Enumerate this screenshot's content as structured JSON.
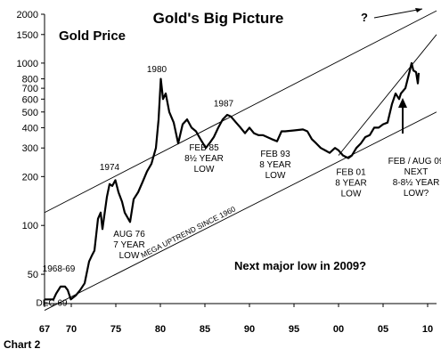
{
  "chart_data": {
    "type": "line",
    "title": "Gold's Big Picture",
    "ylabel": "Gold Price",
    "caption": "Chart 2",
    "question_mark": "?",
    "callout": "Next major low in 2009?",
    "trend_label": "MEGA UPTREND SINCE 1960",
    "y_scale": "log",
    "ylim": [
      33,
      2000
    ],
    "xlim": [
      1967,
      2011
    ],
    "y_ticks": [
      50,
      100,
      200,
      300,
      400,
      500,
      600,
      700,
      800,
      1000,
      1500,
      2000
    ],
    "y_tick_labels": [
      "50",
      "100",
      "200",
      "300",
      "400",
      "500",
      "600",
      "700",
      "800",
      "1000",
      "1500",
      "2000"
    ],
    "x_ticks": [
      1967,
      1970,
      1975,
      1980,
      1985,
      1990,
      1995,
      2000,
      2005,
      2010
    ],
    "x_tick_labels": [
      "67",
      "70",
      "75",
      "80",
      "85",
      "90",
      "95",
      "00",
      "05",
      "10"
    ],
    "grid": false,
    "series": [
      {
        "x": [
          1967.0,
          1968.0,
          1968.3,
          1968.8,
          1969.3,
          1969.6,
          1969.95,
          1970.5,
          1971.0,
          1971.5,
          1972.0,
          1972.3,
          1972.6,
          1973.0,
          1973.3,
          1973.5,
          1973.8,
          1974.0,
          1974.3,
          1974.6,
          1974.95,
          1975.3,
          1975.7,
          1976.0,
          1976.6,
          1977.0,
          1977.5,
          1978.0,
          1978.5,
          1979.0,
          1979.5,
          1979.8,
          1980.05,
          1980.3,
          1980.6,
          1981.0,
          1981.5,
          1982.0,
          1982.5,
          1983.0,
          1983.5,
          1984.0,
          1984.5,
          1985.1,
          1985.5,
          1986.0,
          1986.5,
          1987.0,
          1987.5,
          1987.9,
          1988.5,
          1989.0,
          1989.5,
          1990.0,
          1990.5,
          1991.0,
          1991.5,
          1992.0,
          1992.5,
          1993.1,
          1993.6,
          1994.0,
          1995.0,
          1996.0,
          1996.5,
          1997.0,
          1997.5,
          1998.0,
          1998.5,
          1999.0,
          1999.6,
          2000.0,
          2000.5,
          2001.1,
          2001.5,
          2002.0,
          2002.5,
          2003.0,
          2003.5,
          2004.0,
          2004.5,
          2005.0,
          2005.5,
          2006.0,
          2006.4,
          2006.8,
          2007.0,
          2007.5,
          2008.0,
          2008.2,
          2008.4,
          2008.7,
          2008.9,
          2009.0
        ],
        "values": [
          35,
          35,
          38,
          42,
          42,
          40,
          35,
          37,
          40,
          44,
          60,
          65,
          70,
          110,
          120,
          95,
          125,
          150,
          180,
          175,
          190,
          160,
          140,
          120,
          105,
          145,
          160,
          185,
          215,
          240,
          300,
          450,
          800,
          600,
          650,
          500,
          430,
          320,
          420,
          450,
          400,
          380,
          340,
          300,
          320,
          350,
          400,
          450,
          480,
          470,
          430,
          400,
          370,
          400,
          370,
          360,
          360,
          350,
          340,
          330,
          380,
          380,
          385,
          390,
          380,
          340,
          320,
          300,
          290,
          280,
          300,
          290,
          270,
          260,
          270,
          300,
          320,
          350,
          360,
          400,
          400,
          420,
          430,
          560,
          650,
          600,
          650,
          700,
          900,
          1000,
          900,
          880,
          750,
          870
        ]
      }
    ],
    "trendlines": [
      {
        "name": "upper",
        "x": [
          1967,
          2011
        ],
        "y": [
          120,
          2100
        ]
      },
      {
        "name": "lower",
        "x": [
          1967,
          2011
        ],
        "y": [
          30,
          500
        ]
      },
      {
        "name": "steep",
        "x": [
          2000,
          2011
        ],
        "y": [
          270,
          1500
        ]
      }
    ],
    "annotations": [
      {
        "lines": [
          "1968-69"
        ],
        "x": 1968.6,
        "y": 52
      },
      {
        "lines": [
          "DEC 69"
        ],
        "x": 1967.8,
        "y": 32
      },
      {
        "lines": [
          "1974"
        ],
        "x": 1974.3,
        "y": 220
      },
      {
        "lines": [
          "AUG 76",
          "7 YEAR",
          "LOW"
        ],
        "x": 1976.5,
        "y": 85
      },
      {
        "lines": [
          "1980"
        ],
        "x": 1979.6,
        "y": 880
      },
      {
        "lines": [
          "1987"
        ],
        "x": 1987.1,
        "y": 540
      },
      {
        "lines": [
          "FEB 85",
          "8½ YEAR",
          "LOW"
        ],
        "x": 1984.9,
        "y": 290
      },
      {
        "lines": [
          "FEB 93",
          "8 YEAR",
          "LOW"
        ],
        "x": 1992.9,
        "y": 265
      },
      {
        "lines": [
          "FEB 01",
          "8 YEAR",
          "LOW"
        ],
        "x": 2001.4,
        "y": 205
      },
      {
        "lines": [
          "FEB / AUG 09",
          "NEXT",
          "8-8½ YEAR",
          "LOW?"
        ],
        "x": 2008.7,
        "y": 240
      }
    ]
  }
}
